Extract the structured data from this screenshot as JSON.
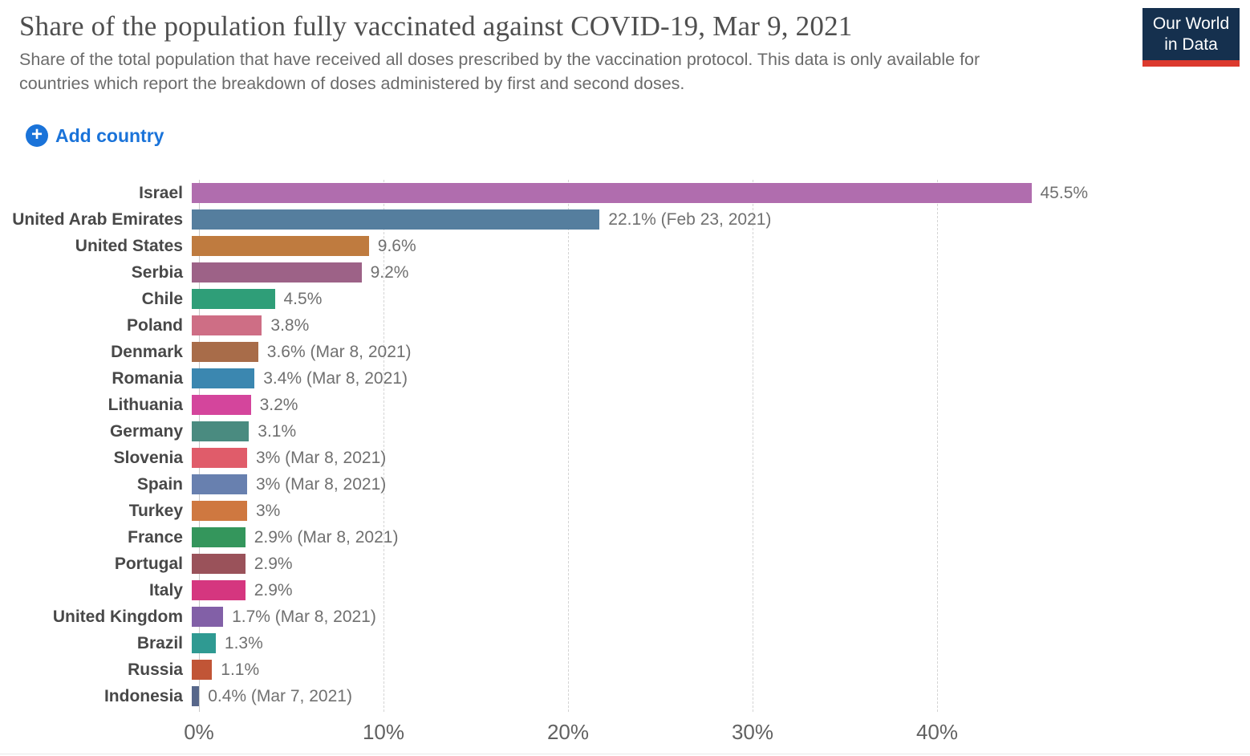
{
  "header": {
    "title": "Share of the population fully vaccinated against COVID-19, Mar 9, 2021",
    "subtitle": "Share of the total population that have received all doses prescribed by the vaccination protocol. This data is only available for countries which report the breakdown of doses administered by first and second doses.",
    "logo": {
      "line1": "Our World",
      "line2": "in Data",
      "bg_color": "#15304e",
      "bar_color": "#dc3a2e"
    }
  },
  "controls": {
    "add_country_label": "Add country",
    "plus_icon": "+",
    "accent_color": "#1a73d9"
  },
  "chart_data": {
    "type": "bar",
    "orientation": "horizontal",
    "title": "Share of the population fully vaccinated against COVID-19, Mar 9, 2021",
    "x_unit": "%",
    "xlim": [
      0,
      47
    ],
    "grid": true,
    "x_ticks": [
      "0%",
      "10%",
      "20%",
      "30%",
      "40%"
    ],
    "x_tick_values": [
      0,
      10,
      20,
      30,
      40
    ],
    "rows": [
      {
        "country": "Israel",
        "value": 45.5,
        "label": "45.5%",
        "color": "#b06dae"
      },
      {
        "country": "United Arab Emirates",
        "value": 22.1,
        "label": "22.1% (Feb 23, 2021)",
        "color": "#557e9e"
      },
      {
        "country": "United States",
        "value": 9.6,
        "label": "9.6%",
        "color": "#bf7b3f"
      },
      {
        "country": "Serbia",
        "value": 9.2,
        "label": "9.2%",
        "color": "#9d6287"
      },
      {
        "country": "Chile",
        "value": 4.5,
        "label": "4.5%",
        "color": "#2f9e78"
      },
      {
        "country": "Poland",
        "value": 3.8,
        "label": "3.8%",
        "color": "#ce6e85"
      },
      {
        "country": "Denmark",
        "value": 3.6,
        "label": "3.6% (Mar 8, 2021)",
        "color": "#a86c49"
      },
      {
        "country": "Romania",
        "value": 3.4,
        "label": "3.4% (Mar 8, 2021)",
        "color": "#3b87b0"
      },
      {
        "country": "Lithuania",
        "value": 3.2,
        "label": "3.2%",
        "color": "#d4459c"
      },
      {
        "country": "Germany",
        "value": 3.1,
        "label": "3.1%",
        "color": "#4a8b80"
      },
      {
        "country": "Slovenia",
        "value": 3.0,
        "label": "3% (Mar 8, 2021)",
        "color": "#e05c6a"
      },
      {
        "country": "Spain",
        "value": 3.0,
        "label": "3% (Mar 8, 2021)",
        "color": "#6880af"
      },
      {
        "country": "Turkey",
        "value": 3.0,
        "label": "3%",
        "color": "#cf7840"
      },
      {
        "country": "France",
        "value": 2.9,
        "label": "2.9% (Mar 8, 2021)",
        "color": "#34965c"
      },
      {
        "country": "Portugal",
        "value": 2.9,
        "label": "2.9%",
        "color": "#9a525a"
      },
      {
        "country": "Italy",
        "value": 2.9,
        "label": "2.9%",
        "color": "#d5367f"
      },
      {
        "country": "United Kingdom",
        "value": 1.7,
        "label": "1.7% (Mar 8, 2021)",
        "color": "#8260a7"
      },
      {
        "country": "Brazil",
        "value": 1.3,
        "label": "1.3%",
        "color": "#2f9a92"
      },
      {
        "country": "Russia",
        "value": 1.1,
        "label": "1.1%",
        "color": "#c15536"
      },
      {
        "country": "Indonesia",
        "value": 0.4,
        "label": "0.4% (Mar 7, 2021)",
        "color": "#57678a"
      }
    ]
  }
}
